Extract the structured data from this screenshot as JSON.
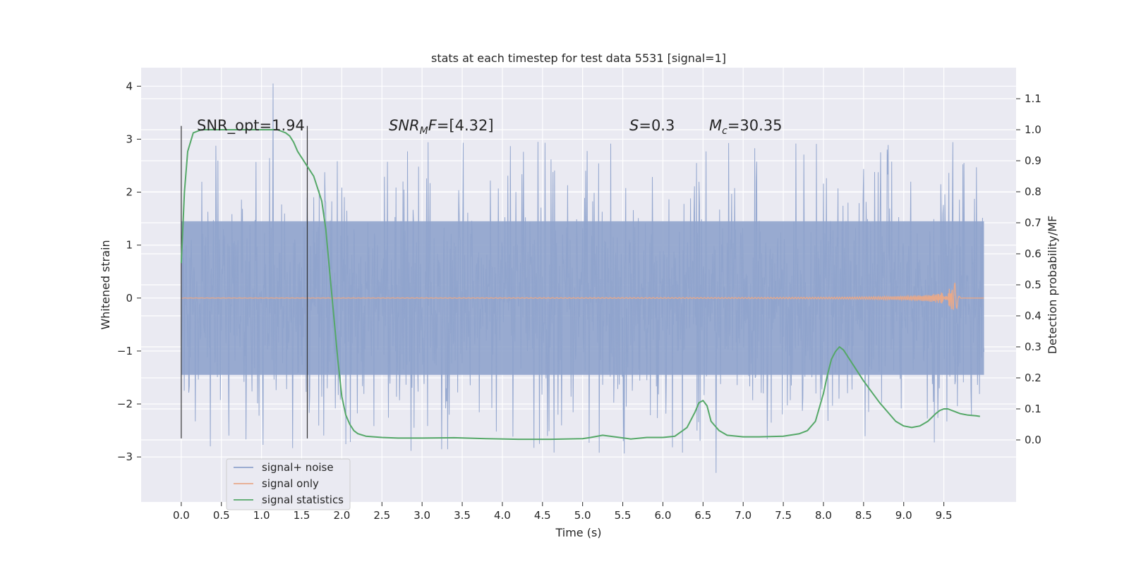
{
  "chart_data": {
    "type": "line",
    "title": "stats at each timestep for test data 5531 [signal=1]",
    "xlabel": "Time (s)",
    "ylabel": "Whitened strain",
    "y2label": "Detection probability/MF",
    "xlim": [
      -0.5,
      10.4
    ],
    "ylim": [
      -3.85,
      4.35
    ],
    "y2lim": [
      -0.2,
      1.2
    ],
    "xticks": [
      0.0,
      0.5,
      1.0,
      1.5,
      2.0,
      2.5,
      3.0,
      3.5,
      4.0,
      4.5,
      5.0,
      5.5,
      6.0,
      6.5,
      7.0,
      7.5,
      8.0,
      8.5,
      9.0,
      9.5
    ],
    "xtick_labels": [
      "0.0",
      "0.5",
      "1.0",
      "1.5",
      "2.0",
      "2.5",
      "3.0",
      "3.5",
      "4.0",
      "4.5",
      "5.0",
      "5.5",
      "6.0",
      "6.5",
      "7.0",
      "7.5",
      "8.0",
      "8.5",
      "9.0",
      "9.5"
    ],
    "yticks": [
      -3,
      -2,
      -1,
      0,
      1,
      2,
      3,
      4
    ],
    "ytick_labels": [
      "−3",
      "−2",
      "−1",
      "0",
      "1",
      "2",
      "3",
      "4"
    ],
    "y2ticks": [
      0.0,
      0.1,
      0.2,
      0.3,
      0.4,
      0.5,
      0.6,
      0.7,
      0.8,
      0.9,
      1.0,
      1.1
    ],
    "y2tick_labels": [
      "0.0",
      "0.1",
      "0.2",
      "0.3",
      "0.4",
      "0.5",
      "0.6",
      "0.7",
      "0.8",
      "0.9",
      "1.0",
      "1.1"
    ],
    "grid": true,
    "legend_position": "bottom-left",
    "series": [
      {
        "name": "signal+ noise",
        "color": "#8fa3cc",
        "kind": "noise",
        "x_range": [
          0.0,
          10.0
        ],
        "core_amplitude": 1.45,
        "peak_max": 4.05,
        "peak_min": -3.3
      },
      {
        "name": "signal only",
        "color": "#e8a98a",
        "kind": "chirp",
        "x_range": [
          0.0,
          10.0
        ],
        "merger_time": 9.65,
        "peak_amplitude": 0.42
      },
      {
        "name": "signal statistics",
        "color": "#55a868",
        "axis": "right",
        "x": [
          0.0,
          0.04,
          0.08,
          0.15,
          0.25,
          0.4,
          0.6,
          0.8,
          1.0,
          1.2,
          1.3,
          1.35,
          1.4,
          1.45,
          1.5,
          1.55,
          1.6,
          1.65,
          1.7,
          1.75,
          1.8,
          1.85,
          1.9,
          1.95,
          2.0,
          2.05,
          2.1,
          2.15,
          2.2,
          2.3,
          2.4,
          2.5,
          2.7,
          3.0,
          3.4,
          3.8,
          4.2,
          4.6,
          5.0,
          5.1,
          5.25,
          5.4,
          5.6,
          5.8,
          6.0,
          6.15,
          6.3,
          6.4,
          6.45,
          6.5,
          6.55,
          6.6,
          6.7,
          6.8,
          7.0,
          7.2,
          7.5,
          7.7,
          7.8,
          7.9,
          8.0,
          8.05,
          8.1,
          8.15,
          8.2,
          8.25,
          8.3,
          8.4,
          8.5,
          8.6,
          8.7,
          8.8,
          8.9,
          9.0,
          9.1,
          9.2,
          9.3,
          9.4,
          9.45,
          9.5,
          9.55,
          9.6,
          9.7,
          9.8,
          9.9,
          9.95
        ],
        "values": [
          0.57,
          0.8,
          0.93,
          0.99,
          1.0,
          1.0,
          1.0,
          1.0,
          1.0,
          1.0,
          0.99,
          0.98,
          0.96,
          0.93,
          0.91,
          0.89,
          0.87,
          0.85,
          0.81,
          0.77,
          0.68,
          0.54,
          0.4,
          0.26,
          0.14,
          0.08,
          0.05,
          0.03,
          0.02,
          0.012,
          0.01,
          0.008,
          0.006,
          0.006,
          0.007,
          0.004,
          0.002,
          0.002,
          0.004,
          0.008,
          0.015,
          0.01,
          0.003,
          0.008,
          0.008,
          0.012,
          0.04,
          0.09,
          0.12,
          0.127,
          0.11,
          0.06,
          0.03,
          0.015,
          0.01,
          0.01,
          0.012,
          0.02,
          0.03,
          0.06,
          0.15,
          0.21,
          0.26,
          0.285,
          0.3,
          0.29,
          0.27,
          0.23,
          0.19,
          0.155,
          0.12,
          0.09,
          0.06,
          0.045,
          0.04,
          0.045,
          0.06,
          0.085,
          0.095,
          0.1,
          0.1,
          0.095,
          0.085,
          0.08,
          0.078,
          0.076
        ]
      }
    ],
    "vlines": [
      0.0,
      1.57
    ],
    "annotations": [
      {
        "id": "snr-opt",
        "text": "SNR_opt=1.94",
        "x": 0.2,
        "y2": 1.005
      },
      {
        "id": "snr-mf",
        "text": "=[4.32]",
        "math_base": "SNR",
        "math_sub": "M",
        "math_tail": "F",
        "x": 2.6,
        "y2": 1.005
      },
      {
        "id": "s-val",
        "text": "=0.3",
        "math_base": "S",
        "x": 5.62,
        "y2": 1.005
      },
      {
        "id": "mc-val",
        "text": "=30.35",
        "math_base": "M",
        "math_sub": "c",
        "x": 6.62,
        "y2": 1.005
      }
    ]
  }
}
